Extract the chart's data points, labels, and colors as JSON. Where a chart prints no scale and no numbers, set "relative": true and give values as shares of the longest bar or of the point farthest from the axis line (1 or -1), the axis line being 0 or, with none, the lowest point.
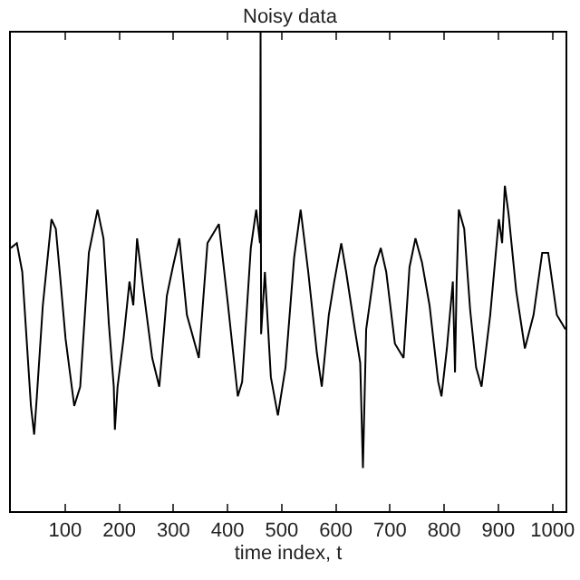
{
  "chart_data": {
    "type": "line",
    "title": "Noisy data",
    "xlabel": "time index, t",
    "relative": true,
    "grid": false,
    "marker": "none",
    "line_style": "solid",
    "xlim": [
      0,
      1024
    ],
    "xticks": [
      100,
      200,
      300,
      400,
      500,
      600,
      700,
      800,
      900,
      1000
    ],
    "x": [
      0,
      11,
      21,
      37,
      43,
      48,
      59,
      75,
      83,
      91,
      101,
      117,
      128,
      144,
      160,
      171,
      181,
      190,
      192,
      197,
      208,
      219,
      226,
      233,
      245,
      261,
      274,
      288,
      299,
      311,
      325,
      347,
      363,
      384,
      400,
      419,
      427,
      443,
      453,
      460,
      461,
      462,
      469,
      480,
      493,
      507,
      523,
      535,
      549,
      565,
      574,
      587,
      597,
      610,
      619,
      635,
      645,
      650,
      656,
      672,
      683,
      693,
      709,
      725,
      736,
      747,
      759,
      773,
      789,
      795,
      805,
      816,
      820,
      823,
      827,
      837,
      848,
      859,
      869,
      885,
      901,
      907,
      912,
      919,
      933,
      949,
      965,
      981,
      992,
      1008,
      1024
    ],
    "series": [
      {
        "color": "#000000",
        "values": [
          0.55,
          0.56,
          0.5,
          0.22,
          0.16,
          0.24,
          0.43,
          0.61,
          0.59,
          0.49,
          0.36,
          0.22,
          0.26,
          0.54,
          0.63,
          0.57,
          0.39,
          0.26,
          0.17,
          0.26,
          0.36,
          0.48,
          0.43,
          0.57,
          0.46,
          0.32,
          0.26,
          0.45,
          0.51,
          0.57,
          0.41,
          0.32,
          0.56,
          0.6,
          0.44,
          0.24,
          0.27,
          0.55,
          0.63,
          0.56,
          1.0,
          0.37,
          0.5,
          0.28,
          0.2,
          0.3,
          0.53,
          0.63,
          0.5,
          0.33,
          0.26,
          0.41,
          0.48,
          0.56,
          0.5,
          0.38,
          0.31,
          0.09,
          0.38,
          0.51,
          0.55,
          0.5,
          0.35,
          0.32,
          0.51,
          0.57,
          0.52,
          0.43,
          0.27,
          0.24,
          0.34,
          0.48,
          0.29,
          0.48,
          0.63,
          0.59,
          0.42,
          0.3,
          0.26,
          0.41,
          0.61,
          0.56,
          0.68,
          0.62,
          0.46,
          0.34,
          0.41,
          0.54,
          0.54,
          0.41,
          0.38
        ]
      }
    ]
  }
}
